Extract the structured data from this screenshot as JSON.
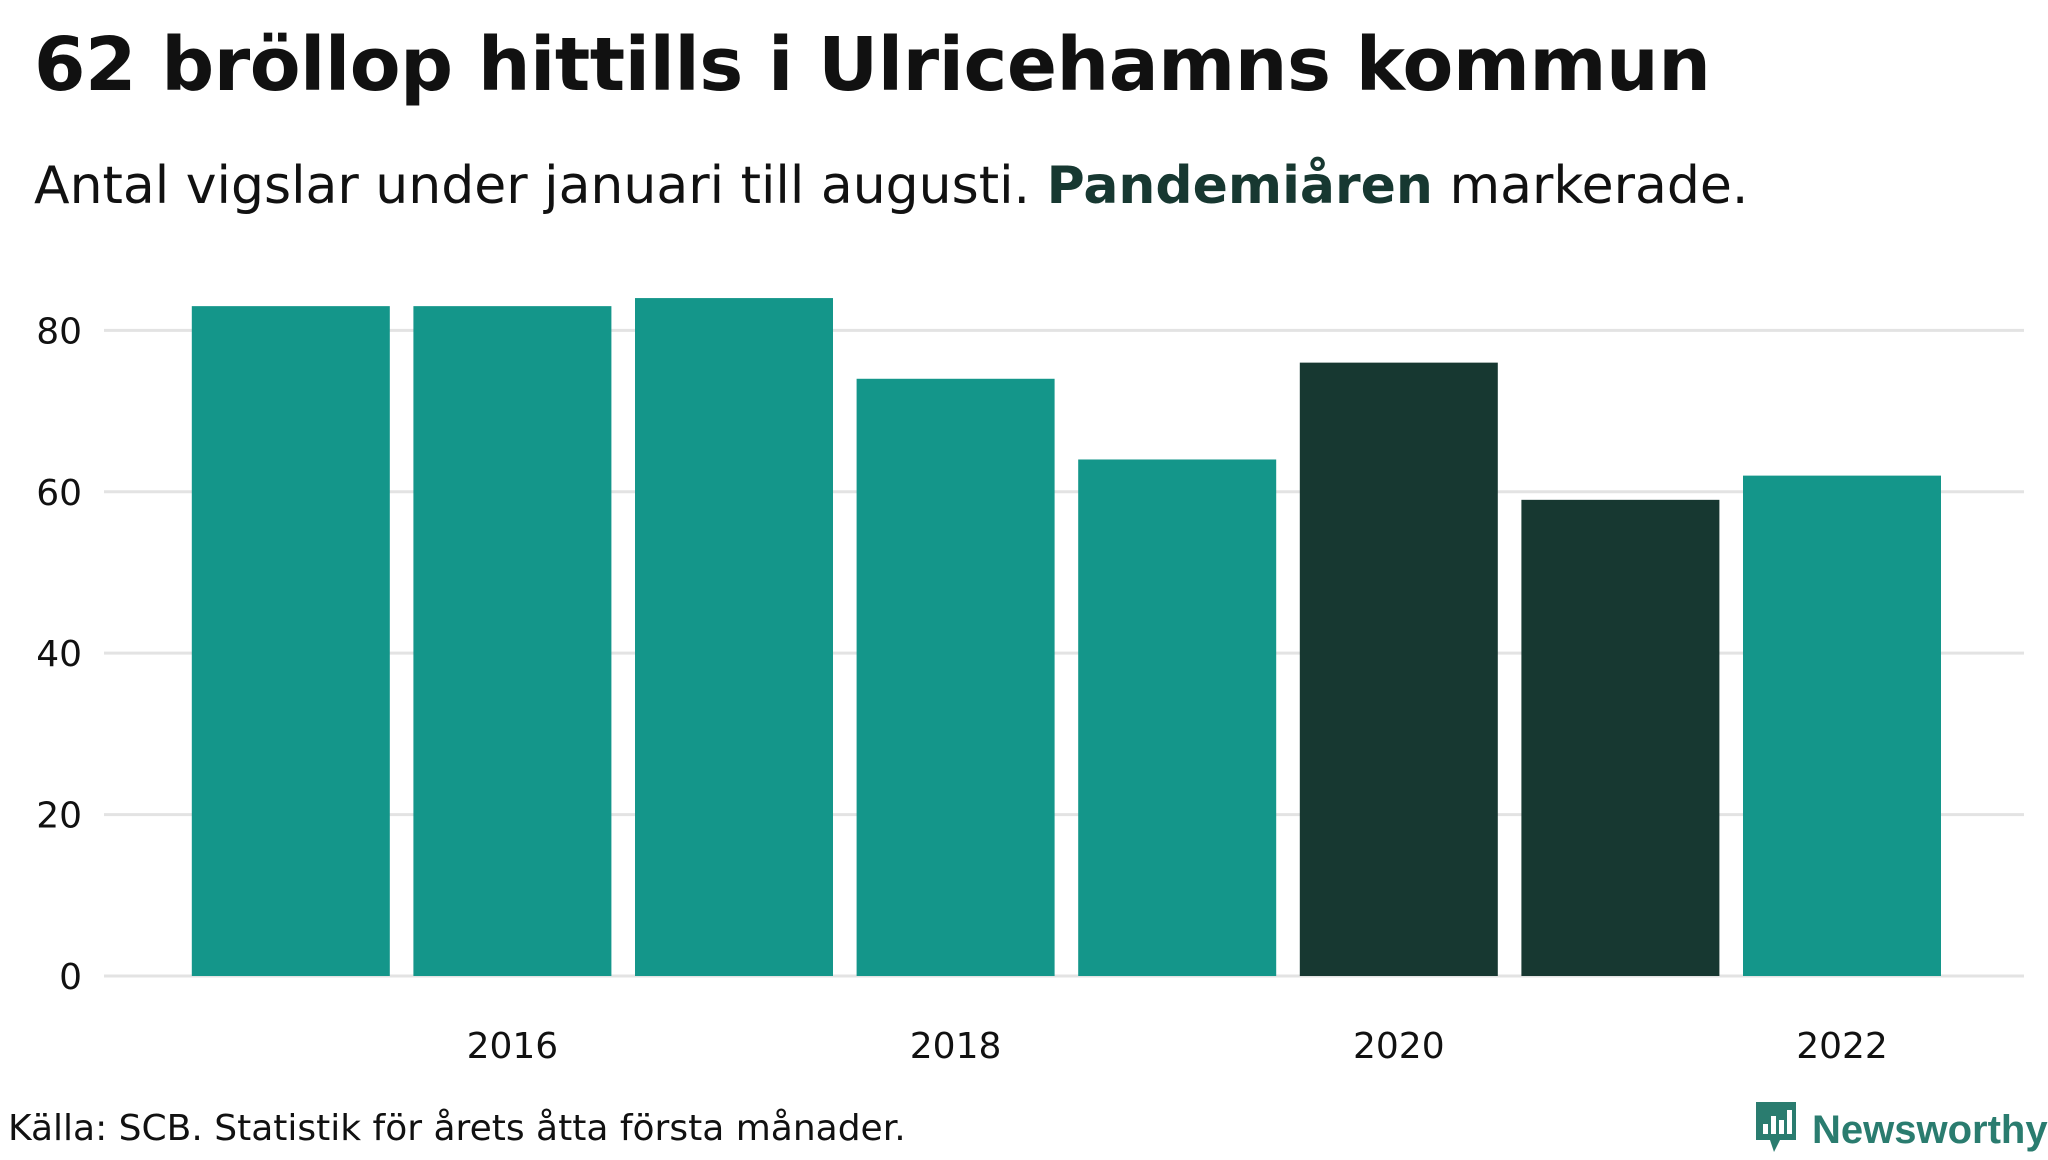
{
  "title": "62 bröllop hittills i Ulricehamns kommun",
  "subtitle": {
    "before": "Antal vigslar under januari till augusti. ",
    "highlight": "Pandemiåren",
    "after": " markerade."
  },
  "source": "Källa: SCB. Statistik för årets åtta första månader.",
  "brand": {
    "name": "Newsworthy",
    "icon": "newsworthy-logo-icon"
  },
  "colors": {
    "normal": "#14968a",
    "pandemic": "#173831",
    "grid": "#e3e3e3",
    "text": "#111111"
  },
  "chart_data": {
    "type": "bar",
    "categories": [
      "2015",
      "2016",
      "2017",
      "2018",
      "2019",
      "2020",
      "2021",
      "2022"
    ],
    "values": [
      83,
      83,
      84,
      74,
      64,
      76,
      59,
      62
    ],
    "pandemic": [
      false,
      false,
      false,
      false,
      false,
      true,
      true,
      false
    ],
    "x_tick_labels": [
      "2016",
      "2018",
      "2020",
      "2022"
    ],
    "y_ticks": [
      0,
      20,
      40,
      60,
      80
    ],
    "ylim": [
      0,
      85
    ],
    "xlabel": "",
    "ylabel": "",
    "grid": "horizontal",
    "legend": "none"
  }
}
